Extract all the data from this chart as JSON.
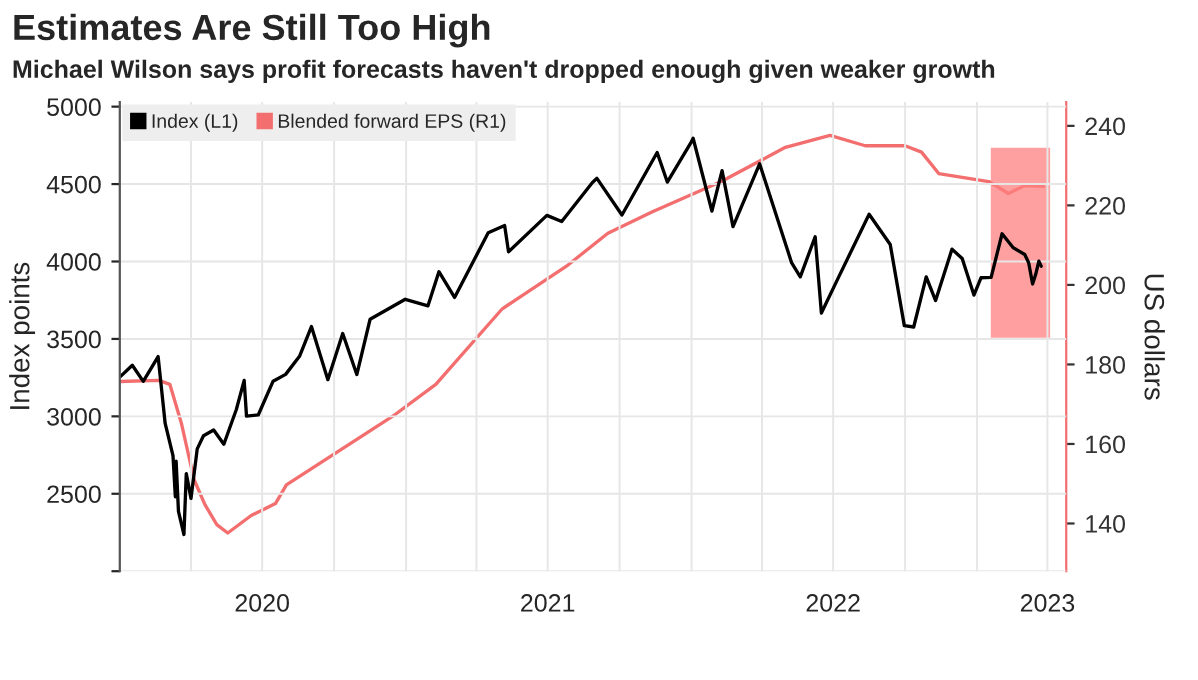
{
  "chart_data": {
    "type": "line",
    "title": "Estimates Are Still Too High",
    "subtitle": "Michael Wilson says profit forecasts haven't dropped enough given weaker growth",
    "ylabel": "Index points",
    "y2label": "US dollars",
    "xlim": [
      "2020-01-01",
      "2023-04-25"
    ],
    "xticks": [
      {
        "value": "2020-04-01",
        "label": null
      },
      {
        "value": "2020-07-01",
        "label": "2020"
      },
      {
        "value": "2020-10-01",
        "label": null
      },
      {
        "value": "2021-01-01",
        "label": null
      },
      {
        "value": "2021-04-01",
        "label": null
      },
      {
        "value": "2021-07-01",
        "label": "2021"
      },
      {
        "value": "2021-10-01",
        "label": null
      },
      {
        "value": "2022-01-01",
        "label": null
      },
      {
        "value": "2022-04-01",
        "label": null
      },
      {
        "value": "2022-07-01",
        "label": "2022"
      },
      {
        "value": "2022-10-01",
        "label": null
      },
      {
        "value": "2023-01-01",
        "label": null
      },
      {
        "value": "2023-04-01",
        "label": "2023"
      }
    ],
    "ylim": [
      2000,
      5030
    ],
    "yticks": [
      {
        "value": 2000,
        "label": null
      },
      2500,
      3000,
      3500,
      4000,
      4500,
      5000
    ],
    "y2lim": [
      128,
      246
    ],
    "y2ticks": [
      140,
      160,
      180,
      200,
      220,
      240
    ],
    "grid": true,
    "legend": "top left",
    "line_style": "solid",
    "marker": "none",
    "bands": [
      {
        "axis": "x",
        "from": "2023-01-20",
        "to": "2023-04-03",
        "color": "#ff8080"
      }
    ],
    "series": [
      {
        "name": "Index (L1)",
        "color": "#000000",
        "axis": "y",
        "x": [
          "2020-01-02",
          "2020-01-17",
          "2020-01-31",
          "2020-02-19",
          "2020-02-28",
          "2020-03-09",
          "2020-03-12",
          "2020-03-13",
          "2020-03-16",
          "2020-03-23",
          "2020-03-26",
          "2020-04-01",
          "2020-04-09",
          "2020-04-17",
          "2020-04-30",
          "2020-05-13",
          "2020-05-29",
          "2020-06-08",
          "2020-06-11",
          "2020-06-26",
          "2020-07-15",
          "2020-07-31",
          "2020-08-18",
          "2020-09-02",
          "2020-09-23",
          "2020-10-12",
          "2020-10-30",
          "2020-11-16",
          "2020-12-31",
          "2021-01-29",
          "2021-02-12",
          "2021-03-04",
          "2021-04-16",
          "2021-05-07",
          "2021-05-12",
          "2021-06-30",
          "2021-07-19",
          "2021-08-27",
          "2021-09-02",
          "2021-10-04",
          "2021-11-18",
          "2021-12-01",
          "2021-12-31",
          "2022-01-03",
          "2022-01-27",
          "2022-02-09",
          "2022-02-23",
          "2022-03-29",
          "2022-05-09",
          "2022-05-20",
          "2022-06-08",
          "2022-06-16",
          "2022-07-08",
          "2022-08-16",
          "2022-09-12",
          "2022-09-30",
          "2022-10-12",
          "2022-10-28",
          "2022-11-09",
          "2022-11-30",
          "2022-12-13",
          "2022-12-28",
          "2023-01-06",
          "2023-01-19",
          "2023-02-02",
          "2023-02-16",
          "2023-03-03",
          "2023-03-08",
          "2023-03-13",
          "2023-03-17",
          "2023-03-21",
          "2023-03-24"
        ],
        "values": [
          3258,
          3330,
          3226,
          3386,
          2954,
          2747,
          2481,
          2711,
          2386,
          2237,
          2630,
          2470,
          2790,
          2875,
          2912,
          2820,
          3044,
          3232,
          3002,
          3009,
          3227,
          3271,
          3390,
          3580,
          3237,
          3535,
          3270,
          3627,
          3756,
          3714,
          3934,
          3768,
          4185,
          4232,
          4063,
          4298,
          4258,
          4509,
          4537,
          4300,
          4704,
          4513,
          4766,
          4796,
          4326,
          4587,
          4225,
          4631,
          3991,
          3901,
          4160,
          3667,
          3899,
          4305,
          4110,
          3586,
          3577,
          3901,
          3748,
          4080,
          4019,
          3783,
          3895,
          3898,
          4179,
          4090,
          4045,
          3992,
          3855,
          3917,
          4002,
          3970
        ]
      },
      {
        "name": "Blended forward EPS (R1)",
        "color": "#f36f6f",
        "axis": "y2",
        "x": [
          "2020-01-01",
          "2020-02-20",
          "2020-03-05",
          "2020-03-20",
          "2020-04-05",
          "2020-04-19",
          "2020-05-04",
          "2020-05-18",
          "2020-06-17",
          "2020-07-18",
          "2020-08-01",
          "2020-12-18",
          "2021-02-08",
          "2021-05-04",
          "2021-07-27",
          "2021-09-16",
          "2021-11-12",
          "2022-02-08",
          "2022-05-01",
          "2022-06-27",
          "2022-08-11",
          "2022-10-01",
          "2022-10-22",
          "2022-11-13",
          "2022-12-15",
          "2023-01-16",
          "2023-02-10",
          "2023-03-03",
          "2023-03-27"
        ],
        "values": [
          175.7,
          176,
          175,
          165,
          151,
          144.7,
          139.7,
          137.6,
          142,
          145,
          149.7,
          167.4,
          175,
          194,
          205,
          213,
          218.4,
          226,
          234.6,
          237.6,
          235,
          235,
          233.4,
          228,
          227,
          226,
          223,
          225,
          224.8
        ]
      }
    ]
  }
}
